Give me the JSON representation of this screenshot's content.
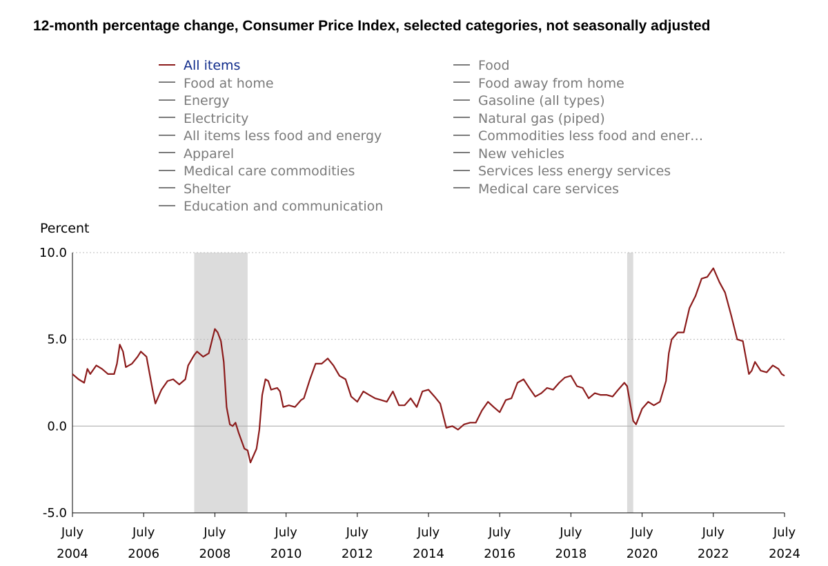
{
  "chart_data": {
    "type": "line",
    "title": "12-month percentage change, Consumer Price Index, selected categories, not seasonally adjusted",
    "ylabel": "Percent",
    "xlabel": "",
    "ylim": [
      -5.0,
      10.0
    ],
    "yticks": [
      "10.0",
      "5.0",
      "0.0",
      "-5.0"
    ],
    "xlim": [
      2004.5,
      2024.5
    ],
    "xticks": [
      {
        "month": "July",
        "year": "2004"
      },
      {
        "month": "July",
        "year": "2006"
      },
      {
        "month": "July",
        "year": "2008"
      },
      {
        "month": "July",
        "year": "2010"
      },
      {
        "month": "July",
        "year": "2012"
      },
      {
        "month": "July",
        "year": "2014"
      },
      {
        "month": "July",
        "year": "2016"
      },
      {
        "month": "July",
        "year": "2018"
      },
      {
        "month": "July",
        "year": "2020"
      },
      {
        "month": "July",
        "year": "2022"
      },
      {
        "month": "July",
        "year": "2024"
      }
    ],
    "recessions": [
      {
        "start": 2007.92,
        "end": 2009.42
      },
      {
        "start": 2020.08,
        "end": 2020.25
      }
    ],
    "legend_left": [
      {
        "label": "All items",
        "active": true
      },
      {
        "label": "Food at home",
        "active": false
      },
      {
        "label": "Energy",
        "active": false
      },
      {
        "label": "Electricity",
        "active": false
      },
      {
        "label": "All items less food and energy",
        "active": false
      },
      {
        "label": "Apparel",
        "active": false
      },
      {
        "label": "Medical care commodities",
        "active": false
      },
      {
        "label": "Shelter",
        "active": false
      },
      {
        "label": "Education and communication",
        "active": false
      }
    ],
    "legend_right": [
      {
        "label": "Food",
        "active": false
      },
      {
        "label": "Food away from home",
        "active": false
      },
      {
        "label": "Gasoline (all types)",
        "active": false
      },
      {
        "label": "Natural gas (piped)",
        "active": false
      },
      {
        "label": "Commodities less food and ener…",
        "active": false
      },
      {
        "label": "New vehicles",
        "active": false
      },
      {
        "label": "Services less energy services",
        "active": false
      },
      {
        "label": "Medical care services",
        "active": false
      }
    ],
    "series": [
      {
        "name": "All items",
        "color": "#8b1a1a",
        "points": [
          [
            2004.5,
            3.0
          ],
          [
            2004.67,
            2.7
          ],
          [
            2004.83,
            2.5
          ],
          [
            2004.92,
            3.3
          ],
          [
            2005.0,
            3.0
          ],
          [
            2005.17,
            3.5
          ],
          [
            2005.33,
            3.3
          ],
          [
            2005.5,
            3.0
          ],
          [
            2005.67,
            3.0
          ],
          [
            2005.75,
            3.6
          ],
          [
            2005.83,
            4.7
          ],
          [
            2005.92,
            4.3
          ],
          [
            2006.0,
            3.4
          ],
          [
            2006.17,
            3.6
          ],
          [
            2006.33,
            4.0
          ],
          [
            2006.42,
            4.3
          ],
          [
            2006.58,
            4.0
          ],
          [
            2006.75,
            2.1
          ],
          [
            2006.83,
            1.3
          ],
          [
            2007.0,
            2.1
          ],
          [
            2007.17,
            2.6
          ],
          [
            2007.33,
            2.7
          ],
          [
            2007.5,
            2.4
          ],
          [
            2007.67,
            2.7
          ],
          [
            2007.75,
            3.5
          ],
          [
            2007.92,
            4.1
          ],
          [
            2008.0,
            4.3
          ],
          [
            2008.17,
            4.0
          ],
          [
            2008.33,
            4.2
          ],
          [
            2008.5,
            5.6
          ],
          [
            2008.58,
            5.4
          ],
          [
            2008.67,
            4.9
          ],
          [
            2008.75,
            3.7
          ],
          [
            2008.83,
            1.1
          ],
          [
            2008.92,
            0.1
          ],
          [
            2009.0,
            0.0
          ],
          [
            2009.08,
            0.2
          ],
          [
            2009.17,
            -0.4
          ],
          [
            2009.33,
            -1.3
          ],
          [
            2009.42,
            -1.4
          ],
          [
            2009.5,
            -2.1
          ],
          [
            2009.67,
            -1.3
          ],
          [
            2009.75,
            -0.2
          ],
          [
            2009.83,
            1.8
          ],
          [
            2009.92,
            2.7
          ],
          [
            2010.0,
            2.6
          ],
          [
            2010.08,
            2.1
          ],
          [
            2010.25,
            2.2
          ],
          [
            2010.33,
            2.0
          ],
          [
            2010.42,
            1.1
          ],
          [
            2010.58,
            1.2
          ],
          [
            2010.75,
            1.1
          ],
          [
            2010.92,
            1.5
          ],
          [
            2011.0,
            1.6
          ],
          [
            2011.17,
            2.7
          ],
          [
            2011.33,
            3.6
          ],
          [
            2011.5,
            3.6
          ],
          [
            2011.67,
            3.9
          ],
          [
            2011.83,
            3.5
          ],
          [
            2012.0,
            2.9
          ],
          [
            2012.17,
            2.7
          ],
          [
            2012.33,
            1.7
          ],
          [
            2012.5,
            1.4
          ],
          [
            2012.67,
            2.0
          ],
          [
            2012.83,
            1.8
          ],
          [
            2013.0,
            1.6
          ],
          [
            2013.17,
            1.5
          ],
          [
            2013.33,
            1.4
          ],
          [
            2013.5,
            2.0
          ],
          [
            2013.67,
            1.2
          ],
          [
            2013.83,
            1.2
          ],
          [
            2014.0,
            1.6
          ],
          [
            2014.17,
            1.1
          ],
          [
            2014.33,
            2.0
          ],
          [
            2014.5,
            2.1
          ],
          [
            2014.67,
            1.7
          ],
          [
            2014.83,
            1.3
          ],
          [
            2015.0,
            -0.1
          ],
          [
            2015.17,
            0.0
          ],
          [
            2015.33,
            -0.2
          ],
          [
            2015.5,
            0.1
          ],
          [
            2015.67,
            0.2
          ],
          [
            2015.83,
            0.2
          ],
          [
            2016.0,
            0.9
          ],
          [
            2016.17,
            1.4
          ],
          [
            2016.33,
            1.1
          ],
          [
            2016.5,
            0.8
          ],
          [
            2016.67,
            1.5
          ],
          [
            2016.83,
            1.6
          ],
          [
            2017.0,
            2.5
          ],
          [
            2017.17,
            2.7
          ],
          [
            2017.33,
            2.2
          ],
          [
            2017.5,
            1.7
          ],
          [
            2017.67,
            1.9
          ],
          [
            2017.83,
            2.2
          ],
          [
            2018.0,
            2.1
          ],
          [
            2018.17,
            2.5
          ],
          [
            2018.33,
            2.8
          ],
          [
            2018.5,
            2.9
          ],
          [
            2018.67,
            2.3
          ],
          [
            2018.83,
            2.2
          ],
          [
            2019.0,
            1.6
          ],
          [
            2019.17,
            1.9
          ],
          [
            2019.33,
            1.8
          ],
          [
            2019.5,
            1.8
          ],
          [
            2019.67,
            1.7
          ],
          [
            2019.83,
            2.1
          ],
          [
            2020.0,
            2.5
          ],
          [
            2020.08,
            2.3
          ],
          [
            2020.25,
            0.3
          ],
          [
            2020.33,
            0.1
          ],
          [
            2020.5,
            1.0
          ],
          [
            2020.67,
            1.4
          ],
          [
            2020.83,
            1.2
          ],
          [
            2021.0,
            1.4
          ],
          [
            2021.17,
            2.6
          ],
          [
            2021.25,
            4.2
          ],
          [
            2021.33,
            5.0
          ],
          [
            2021.5,
            5.4
          ],
          [
            2021.67,
            5.4
          ],
          [
            2021.83,
            6.8
          ],
          [
            2022.0,
            7.5
          ],
          [
            2022.17,
            8.5
          ],
          [
            2022.33,
            8.6
          ],
          [
            2022.5,
            9.1
          ],
          [
            2022.67,
            8.3
          ],
          [
            2022.83,
            7.7
          ],
          [
            2023.0,
            6.4
          ],
          [
            2023.17,
            5.0
          ],
          [
            2023.33,
            4.9
          ],
          [
            2023.5,
            3.0
          ],
          [
            2023.58,
            3.2
          ],
          [
            2023.67,
            3.7
          ],
          [
            2023.83,
            3.2
          ],
          [
            2024.0,
            3.1
          ],
          [
            2024.17,
            3.5
          ],
          [
            2024.33,
            3.3
          ],
          [
            2024.42,
            3.0
          ],
          [
            2024.5,
            2.9
          ]
        ]
      }
    ]
  }
}
